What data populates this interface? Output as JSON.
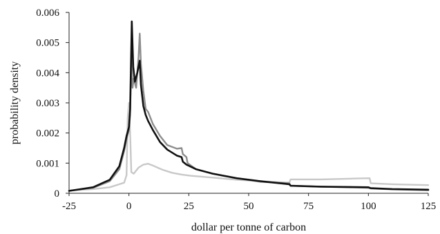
{
  "chart_data": {
    "type": "line",
    "xlabel": "dollar per tonne of carbon",
    "ylabel": "probability density",
    "xlim": [
      -25,
      125
    ],
    "ylim": [
      0,
      0.006
    ],
    "xticks": [
      "-25",
      "0",
      "25",
      "50",
      "75",
      "100",
      "125"
    ],
    "yticks": [
      "0",
      "0.001",
      "0.002",
      "0.003",
      "0.004",
      "0.005",
      "0.006"
    ],
    "grid": false,
    "legend": "none",
    "series": [
      {
        "color": "#c8c8c8",
        "points": [
          [
            -25,
            9e-05
          ],
          [
            -15,
            0.00014
          ],
          [
            -8,
            0.0002
          ],
          [
            -4,
            0.0003
          ],
          [
            -2,
            0.00035
          ],
          [
            -1,
            0.0006
          ],
          [
            -0.5,
            0.0025
          ],
          [
            0,
            0.003
          ],
          [
            0.6,
            0.0018
          ],
          [
            1,
            0.0007
          ],
          [
            2,
            0.00065
          ],
          [
            4,
            0.00085
          ],
          [
            6,
            0.00095
          ],
          [
            8,
            0.00098
          ],
          [
            10,
            0.00092
          ],
          [
            14,
            0.00078
          ],
          [
            18,
            0.00068
          ],
          [
            22,
            0.00062
          ],
          [
            26,
            0.00058
          ],
          [
            35,
            0.00052
          ],
          [
            45,
            0.00045
          ],
          [
            55,
            0.0004
          ],
          [
            67,
            0.00035
          ],
          [
            67.5,
            0.00046
          ],
          [
            80,
            0.00046
          ],
          [
            95,
            0.00049
          ],
          [
            100.5,
            0.0005
          ],
          [
            101,
            0.00033
          ],
          [
            110,
            0.0003
          ],
          [
            125,
            0.00027
          ]
        ]
      },
      {
        "color": "#8c8c8c",
        "points": [
          [
            -25,
            8e-05
          ],
          [
            -15,
            0.00018
          ],
          [
            -8,
            0.0004
          ],
          [
            -4,
            0.0008
          ],
          [
            -2,
            0.0014
          ],
          [
            -1,
            0.0018
          ],
          [
            0,
            0.0021
          ],
          [
            0.5,
            0.0026
          ],
          [
            1,
            0.0045
          ],
          [
            1.5,
            0.0035
          ],
          [
            2,
            0.0038
          ],
          [
            3,
            0.0035
          ],
          [
            4,
            0.0045
          ],
          [
            4.5,
            0.0053
          ],
          [
            5,
            0.0043
          ],
          [
            6,
            0.0034
          ],
          [
            7,
            0.0028
          ],
          [
            8,
            0.0027
          ],
          [
            10,
            0.0023
          ],
          [
            13,
            0.0019
          ],
          [
            16,
            0.0016
          ],
          [
            20,
            0.00148
          ],
          [
            22,
            0.0015
          ],
          [
            22.5,
            0.0013
          ],
          [
            24,
            0.0012
          ],
          [
            24.5,
            0.001
          ],
          [
            28,
            0.0008
          ],
          [
            35,
            0.00065
          ],
          [
            45,
            0.0005
          ],
          [
            55,
            0.00038
          ],
          [
            67,
            0.00033
          ],
          [
            67.5,
            0.00025
          ],
          [
            80,
            0.00022
          ],
          [
            100,
            0.00018
          ],
          [
            101,
            0.00016
          ],
          [
            110,
            0.00013
          ],
          [
            125,
            0.0001
          ]
        ]
      },
      {
        "color": "#111111",
        "points": [
          [
            -25,
            8e-05
          ],
          [
            -15,
            0.0002
          ],
          [
            -8,
            0.00045
          ],
          [
            -4,
            0.0009
          ],
          [
            -2,
            0.0015
          ],
          [
            -1,
            0.0019
          ],
          [
            0,
            0.0022
          ],
          [
            0.5,
            0.0028
          ],
          [
            1.2,
            0.0057
          ],
          [
            1.8,
            0.0042
          ],
          [
            2.5,
            0.0037
          ],
          [
            3.5,
            0.004
          ],
          [
            4.5,
            0.0044
          ],
          [
            5,
            0.0036
          ],
          [
            6,
            0.0029
          ],
          [
            7,
            0.0026
          ],
          [
            8,
            0.0024
          ],
          [
            10,
            0.0021
          ],
          [
            13,
            0.0017
          ],
          [
            16,
            0.00145
          ],
          [
            20,
            0.00125
          ],
          [
            22,
            0.0012
          ],
          [
            22.5,
            0.00105
          ],
          [
            24,
            0.00095
          ],
          [
            28,
            0.0008
          ],
          [
            35,
            0.00065
          ],
          [
            45,
            0.0005
          ],
          [
            55,
            0.0004
          ],
          [
            67,
            0.0003
          ],
          [
            67.5,
            0.00025
          ],
          [
            80,
            0.00022
          ],
          [
            100,
            0.0002
          ],
          [
            101,
            0.00017
          ],
          [
            110,
            0.00014
          ],
          [
            125,
            0.00012
          ]
        ]
      }
    ]
  }
}
